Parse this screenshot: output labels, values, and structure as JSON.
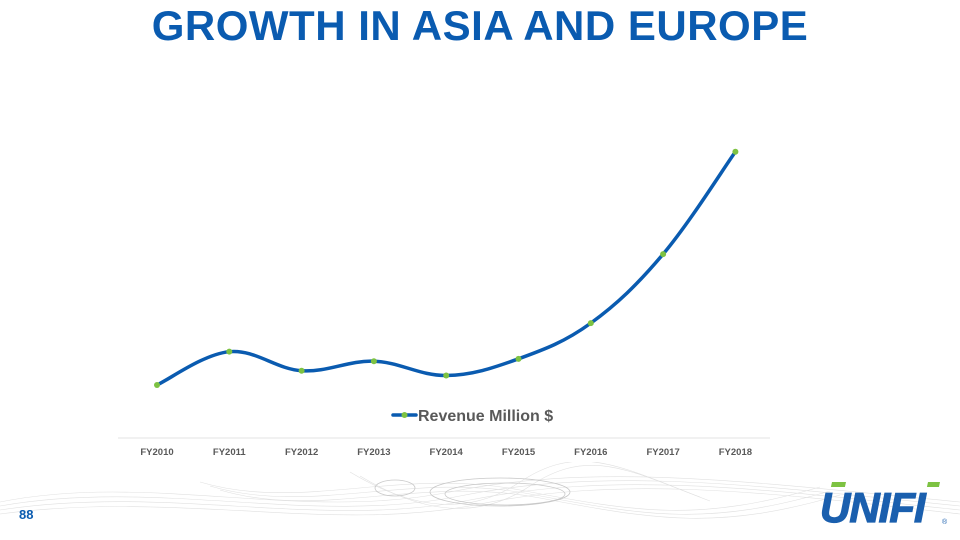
{
  "slide": {
    "title": "GROWTH IN ASIA AND EUROPE",
    "page_number": "88",
    "logo_text": "UNIFI",
    "logo_mark": "®"
  },
  "colors": {
    "title": "#0a5bb0",
    "line": "#0a5bb0",
    "marker": "#7dc242",
    "logo_blue": "#1a5fae",
    "logo_green": "#7dc242"
  },
  "chart_data": {
    "type": "line",
    "title": "",
    "xlabel": "",
    "ylabel": "",
    "categories": [
      "FY2010",
      "FY2011",
      "FY2012",
      "FY2013",
      "FY2014",
      "FY2015",
      "FY2016",
      "FY2017",
      "FY2018"
    ],
    "series": [
      {
        "name": "Revenue Million $",
        "values": [
          0,
          14,
          6,
          10,
          4,
          11,
          26,
          55,
          98
        ]
      }
    ],
    "ylim": [
      0,
      100
    ],
    "y_axis_visible": false,
    "grid": false,
    "legend": "bottom"
  }
}
